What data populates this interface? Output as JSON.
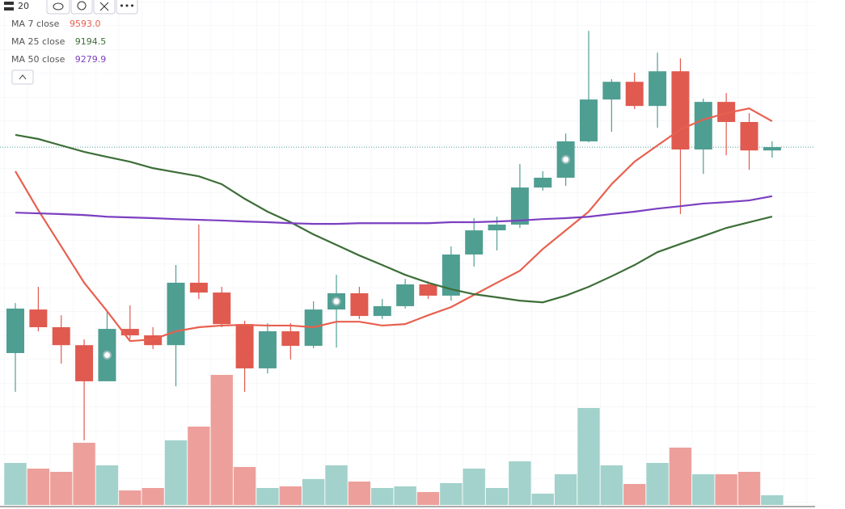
{
  "toolbar": {
    "count": "20"
  },
  "chart_data": {
    "type": "candlestick",
    "categories": [
      null,
      null,
      null,
      null,
      null,
      null,
      null,
      null,
      null,
      null,
      null,
      null,
      null,
      null,
      null,
      null,
      null,
      null,
      null,
      null,
      null,
      null,
      null,
      null,
      null,
      null,
      null,
      null,
      null,
      null,
      null,
      null,
      null,
      null
    ],
    "open": [
      8624,
      8806,
      8732,
      8657,
      8506,
      8725,
      8698,
      8657,
      8918,
      8877,
      8745,
      8560,
      8715,
      8654,
      8806,
      8874,
      8779,
      8820,
      8911,
      8864,
      9036,
      9137,
      9161,
      9316,
      9357,
      9509,
      9684,
      9758,
      9657,
      9802,
      9475,
      9674,
      9590,
      9471
    ],
    "high": [
      8833,
      8901,
      8782,
      8681,
      8799,
      8823,
      8732,
      8992,
      9161,
      8901,
      8759,
      8749,
      8749,
      8840,
      8951,
      8901,
      8850,
      8934,
      8924,
      9070,
      9188,
      9194,
      9414,
      9384,
      9542,
      9971,
      9769,
      9796,
      9880,
      9856,
      9688,
      9711,
      9627,
      9509
    ],
    "low": [
      8462,
      8715,
      8580,
      8259,
      8506,
      8681,
      8641,
      8485,
      8850,
      8732,
      8462,
      8539,
      8597,
      8644,
      8647,
      8766,
      8766,
      8810,
      8850,
      8843,
      8985,
      9053,
      9147,
      9303,
      9323,
      9505,
      9549,
      9644,
      9566,
      9205,
      9373,
      9451,
      9390,
      9441
    ],
    "close": [
      8810,
      8732,
      8657,
      8506,
      8725,
      8698,
      8657,
      8918,
      8877,
      8745,
      8560,
      8715,
      8654,
      8806,
      8874,
      8779,
      8820,
      8911,
      8864,
      9036,
      9137,
      9161,
      9316,
      9357,
      9509,
      9684,
      9758,
      9657,
      9802,
      9475,
      9674,
      9590,
      9471,
      9485
    ],
    "up_color": "#4f9e92",
    "down_color": "#e05a4f",
    "ylim": [
      7972,
      10100
    ],
    "series": [
      {
        "name": "MA 7 close",
        "color": "#e8604f",
        "last": {
          "value": 9593,
          "label": "9593.0"
        },
        "values": [
          9384,
          9221,
          9070,
          8918,
          8799,
          8674,
          8681,
          8715,
          8732,
          8739,
          8742,
          8739,
          8739,
          8732,
          8755,
          8755,
          8739,
          8745,
          8782,
          8816,
          8867,
          8918,
          8968,
          9059,
          9137,
          9215,
          9330,
          9424,
          9492,
          9559,
          9600,
          9627,
          9647,
          9593
        ]
      },
      {
        "name": "MA 25 close",
        "color": "#3d6e38",
        "last": {
          "value": 9194.5,
          "label": "9194.5"
        },
        "values": [
          9536,
          9519,
          9492,
          9465,
          9444,
          9424,
          9397,
          9380,
          9363,
          9330,
          9269,
          9215,
          9171,
          9120,
          9076,
          9032,
          8992,
          8951,
          8918,
          8891,
          8870,
          8857,
          8843,
          8836,
          8864,
          8901,
          8945,
          8992,
          9046,
          9080,
          9113,
          9147,
          9171,
          9194.5
        ]
      },
      {
        "name": "MA 50 close",
        "color": "#7b3fc0",
        "last": {
          "value": 9279.9,
          "label": "9279.9"
        },
        "values": [
          9211,
          9208,
          9205,
          9201,
          9194,
          9191,
          9188,
          9184,
          9181,
          9178,
          9174,
          9171,
          9167,
          9164,
          9164,
          9167,
          9167,
          9167,
          9167,
          9171,
          9171,
          9174,
          9178,
          9184,
          9188,
          9194,
          9205,
          9215,
          9228,
          9238,
          9249,
          9255,
          9262,
          9279.9
        ]
      }
    ],
    "volume": {
      "values": [
        52,
        45,
        41,
        77,
        49,
        18,
        21,
        80,
        97,
        161,
        47,
        21,
        23,
        32,
        49,
        29,
        21,
        23,
        16,
        27,
        45,
        21,
        54,
        14,
        38,
        120,
        49,
        26,
        52,
        71,
        38,
        38,
        41,
        12
      ],
      "vlim": [
        0,
        200
      ],
      "up_color": "#a2d2cb",
      "down_color": "#eda09b"
    }
  }
}
